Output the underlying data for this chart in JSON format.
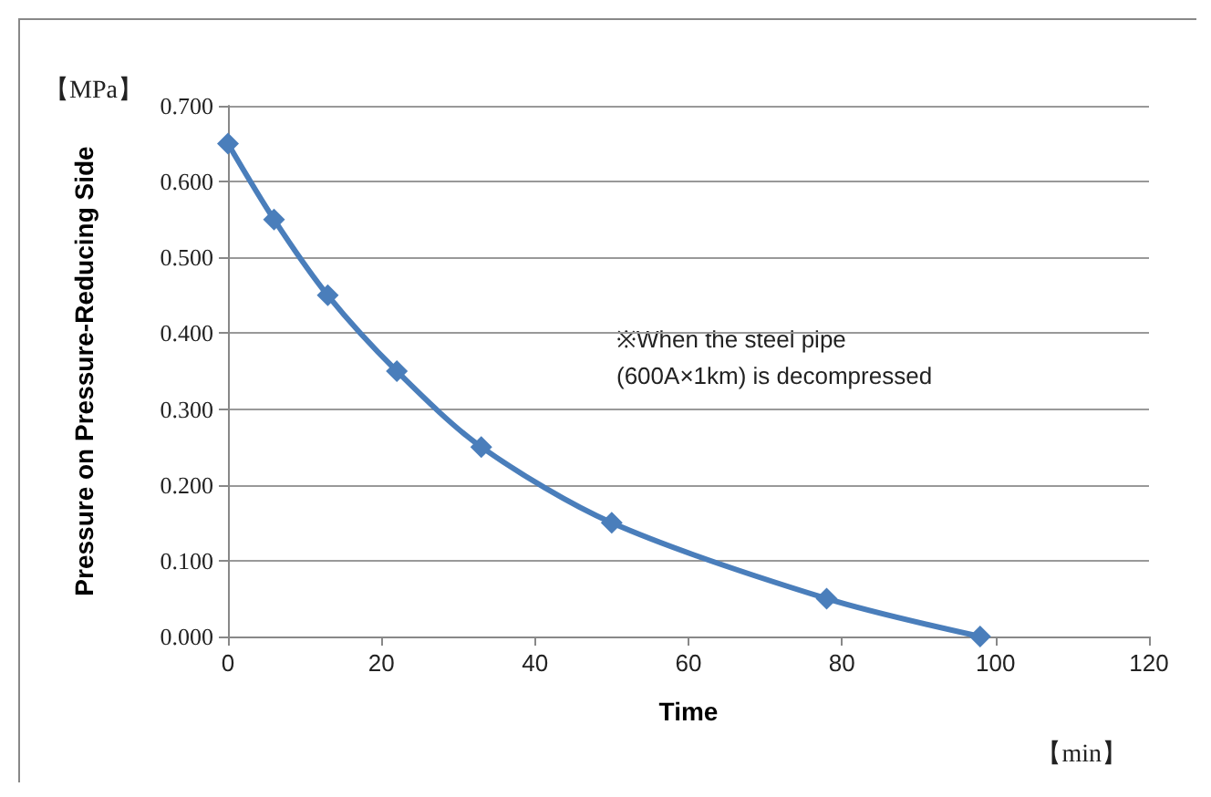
{
  "chart_data": {
    "type": "line",
    "xlabel": "Time",
    "ylabel": "Pressure on Pressure-Reducing Side",
    "annotations": [
      "【MPa】",
      "【min】",
      "※When the steel pipe\n(600A×1km) is decompressed"
    ],
    "x": [
      0,
      6,
      13,
      22,
      33,
      50,
      78,
      98
    ],
    "series": [
      {
        "color": "#4a7ebb",
        "values": [
          0.65,
          0.55,
          0.45,
          0.35,
          0.25,
          0.15,
          0.05,
          0
        ]
      }
    ],
    "xlim": [
      0,
      120
    ],
    "xticks": [
      0,
      20,
      40,
      60,
      80,
      100,
      120
    ],
    "ylim": [
      0,
      0.7
    ],
    "yticks": [
      {
        "value": 0,
        "label": "0.000"
      },
      {
        "value": 0.1,
        "label": "0.100"
      },
      {
        "value": 0.2,
        "label": "0.200"
      },
      {
        "value": 0.3,
        "label": "0.300"
      },
      {
        "value": 0.4,
        "label": "0.400"
      },
      {
        "value": 0.5,
        "label": "0.500"
      },
      {
        "value": 0.6,
        "label": "0.600"
      },
      {
        "value": 0.7,
        "label": "0.700"
      }
    ],
    "grid": "y",
    "marker": "diamond",
    "line_style": "solid"
  }
}
